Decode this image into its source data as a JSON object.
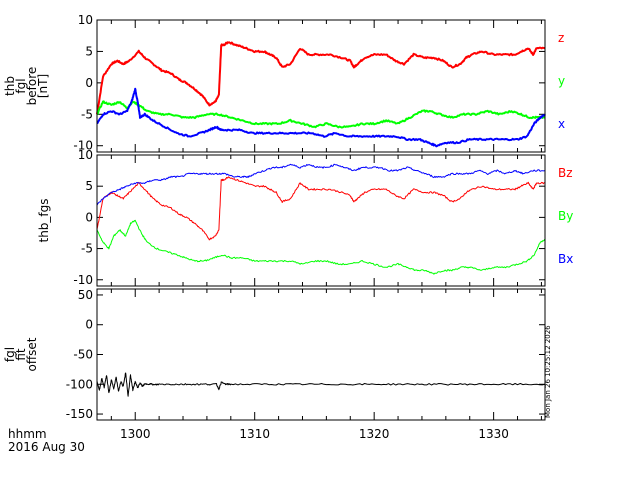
{
  "chart_data": [
    {
      "type": "line",
      "ylabel": [
        "thb",
        "fgl",
        "before",
        "[nT]"
      ],
      "xlim": [
        1296.8,
        1334.3
      ],
      "ylim": [
        -11,
        10
      ],
      "yticks": [
        10,
        5,
        0,
        -5,
        -10
      ],
      "legend_placement": "right",
      "series": [
        {
          "name": "z",
          "color": "#ff0000",
          "x": [
            1296.8,
            1297.3,
            1298.0,
            1298.5,
            1299.0,
            1299.5,
            1300.3,
            1300.8,
            1301.5,
            1302.2,
            1303.0,
            1303.7,
            1304.3,
            1305.0,
            1305.6,
            1306.2,
            1306.7,
            1307.0,
            1307.2,
            1307.4,
            1307.8,
            1308.5,
            1309.3,
            1310.0,
            1310.8,
            1311.3,
            1311.8,
            1312.3,
            1313.0,
            1313.8,
            1314.5,
            1315.3,
            1316.3,
            1317.3,
            1318.0,
            1318.3,
            1318.6,
            1319.2,
            1320.0,
            1321.0,
            1321.8,
            1322.5,
            1323.3,
            1324.2,
            1325.0,
            1325.8,
            1326.5,
            1327.2,
            1327.7,
            1328.2,
            1329.0,
            1330.0,
            1331.0,
            1331.8,
            1332.3,
            1332.9,
            1333.3,
            1333.6,
            1334.3
          ],
          "values": [
            -5,
            1,
            3,
            3.5,
            3,
            3.5,
            5,
            4,
            3,
            2,
            1.5,
            0.5,
            0,
            -1,
            -2,
            -3.5,
            -3,
            -2,
            6,
            6,
            6.5,
            6,
            5.5,
            5,
            5,
            4.5,
            4,
            2.5,
            3,
            5.5,
            4.5,
            4.5,
            4.5,
            4,
            3.5,
            2.5,
            3,
            4,
            4.5,
            4.5,
            3.5,
            3,
            4.5,
            4,
            4,
            3.5,
            2.5,
            3,
            4,
            4.5,
            5,
            4.5,
            4.5,
            4.5,
            5,
            5.5,
            4.5,
            5.5,
            5.5
          ]
        },
        {
          "name": "y",
          "color": "#00ff00",
          "x": [
            1296.8,
            1297.3,
            1298.0,
            1298.7,
            1299.3,
            1299.8,
            1300.3,
            1301.0,
            1302.0,
            1303.0,
            1304.0,
            1305.0,
            1306.0,
            1307.0,
            1308.0,
            1309.0,
            1310.0,
            1311.0,
            1312.0,
            1313.0,
            1314.0,
            1315.0,
            1316.0,
            1317.0,
            1318.0,
            1319.0,
            1320.0,
            1321.0,
            1322.0,
            1323.0,
            1324.0,
            1324.7,
            1325.5,
            1326.5,
            1327.5,
            1328.5,
            1329.5,
            1330.5,
            1331.5,
            1332.3,
            1333.0,
            1333.6,
            1334.3
          ],
          "values": [
            -5,
            -3,
            -3.5,
            -3,
            -4,
            -3,
            -3.5,
            -4.5,
            -5,
            -5,
            -5.5,
            -5.5,
            -5,
            -5,
            -5.5,
            -6,
            -6.5,
            -6.5,
            -6.5,
            -6,
            -6.5,
            -7,
            -6.5,
            -7,
            -7,
            -6.5,
            -6.5,
            -6,
            -6.5,
            -5.5,
            -4.5,
            -4.5,
            -5,
            -5.5,
            -5,
            -5,
            -4.5,
            -5,
            -4.5,
            -5,
            -5.5,
            -5.5,
            -5.5
          ]
        },
        {
          "name": "x",
          "color": "#0000ff",
          "x": [
            1296.8,
            1297.3,
            1298.0,
            1298.7,
            1299.3,
            1299.7,
            1300.0,
            1300.2,
            1300.4,
            1300.8,
            1301.5,
            1302.5,
            1303.5,
            1304.5,
            1305.5,
            1306.2,
            1306.8,
            1307.2,
            1307.8,
            1308.8,
            1309.8,
            1310.8,
            1311.8,
            1312.8,
            1313.8,
            1314.8,
            1315.8,
            1316.8,
            1317.8,
            1318.8,
            1319.8,
            1320.8,
            1321.8,
            1322.8,
            1323.8,
            1324.5,
            1325.2,
            1326.0,
            1327.0,
            1328.0,
            1329.0,
            1330.0,
            1331.0,
            1332.0,
            1332.8,
            1333.4,
            1333.9,
            1334.3
          ],
          "values": [
            -6.5,
            -5,
            -4.5,
            -5,
            -4.5,
            -3,
            -1,
            -3,
            -5.5,
            -5,
            -6,
            -7,
            -8,
            -8.5,
            -8,
            -7.5,
            -7,
            -7.5,
            -7.5,
            -7.5,
            -8,
            -8,
            -8,
            -8,
            -8,
            -8,
            -8.5,
            -8,
            -8.5,
            -8.5,
            -8.5,
            -8.5,
            -8.5,
            -9,
            -9,
            -9.5,
            -10,
            -9.5,
            -9.5,
            -9,
            -9,
            -9,
            -9,
            -9,
            -8.5,
            -6.5,
            -5.5,
            -5
          ]
        }
      ]
    },
    {
      "type": "line",
      "ylabel": [
        "thb_fgs"
      ],
      "xlim": [
        1296.8,
        1334.3
      ],
      "ylim": [
        -11,
        10
      ],
      "yticks": [
        10,
        5,
        0,
        -5,
        -10
      ],
      "legend_placement": "right",
      "series": [
        {
          "name": "Bz",
          "color": "#ff0000",
          "x": [
            1296.8,
            1297.3,
            1298.0,
            1298.5,
            1299.0,
            1299.5,
            1300.3,
            1300.8,
            1301.5,
            1302.2,
            1303.0,
            1303.7,
            1304.3,
            1305.0,
            1305.6,
            1306.2,
            1306.7,
            1307.0,
            1307.2,
            1307.4,
            1307.8,
            1308.5,
            1309.3,
            1310.0,
            1310.8,
            1311.3,
            1311.8,
            1312.3,
            1313.0,
            1313.8,
            1314.5,
            1315.3,
            1316.3,
            1317.3,
            1318.0,
            1318.3,
            1318.6,
            1319.2,
            1320.0,
            1321.0,
            1321.8,
            1322.5,
            1323.3,
            1324.2,
            1325.0,
            1325.8,
            1326.5,
            1327.2,
            1327.7,
            1328.2,
            1329.0,
            1330.0,
            1331.0,
            1331.8,
            1332.3,
            1332.9,
            1333.3,
            1333.6,
            1334.3
          ],
          "values": [
            -2,
            3,
            4,
            3.5,
            3,
            4,
            5.5,
            4.5,
            3,
            2,
            1.5,
            0.5,
            0,
            -1,
            -2,
            -3.5,
            -3,
            -2,
            6,
            6,
            6.5,
            6,
            5.5,
            5,
            5,
            4.5,
            4,
            2.5,
            3,
            5.5,
            4.5,
            4.5,
            4.5,
            4,
            3.5,
            2.5,
            3,
            4,
            4.5,
            4.5,
            3.5,
            3,
            4.5,
            4,
            4,
            3.5,
            2.5,
            3,
            4,
            4.5,
            5,
            4.5,
            4.5,
            4.5,
            5,
            5.5,
            4.5,
            5.5,
            5.5
          ]
        },
        {
          "name": "By",
          "color": "#00ff00",
          "x": [
            1296.8,
            1297.3,
            1297.8,
            1298.2,
            1298.7,
            1299.2,
            1299.6,
            1300.0,
            1300.5,
            1301.0,
            1301.8,
            1302.6,
            1303.5,
            1304.2,
            1305.0,
            1305.8,
            1306.6,
            1307.3,
            1308.0,
            1309.0,
            1310.0,
            1311.0,
            1312.0,
            1313.0,
            1314.0,
            1315.0,
            1316.0,
            1317.0,
            1318.0,
            1319.0,
            1320.0,
            1321.0,
            1322.0,
            1322.8,
            1323.5,
            1324.2,
            1325.0,
            1325.8,
            1326.5,
            1327.3,
            1328.0,
            1329.0,
            1330.0,
            1331.0,
            1332.0,
            1332.8,
            1333.4,
            1333.9,
            1334.3
          ],
          "values": [
            -2,
            -4,
            -5,
            -3,
            -2,
            -3,
            -1,
            -0.5,
            -2.5,
            -4,
            -5,
            -5.5,
            -6,
            -6.5,
            -7,
            -7,
            -6.5,
            -6,
            -6.5,
            -6.5,
            -7,
            -7,
            -7,
            -7,
            -7.5,
            -7,
            -7,
            -7.5,
            -7.5,
            -7,
            -7.5,
            -8,
            -7.5,
            -8,
            -8.5,
            -8.5,
            -9,
            -8.5,
            -8.5,
            -8,
            -8,
            -8.5,
            -8,
            -8,
            -7.5,
            -7,
            -6,
            -4,
            -3.5
          ]
        },
        {
          "name": "Bx",
          "color": "#0000ff",
          "x": [
            1296.8,
            1297.3,
            1298.0,
            1298.7,
            1299.3,
            1300.0,
            1300.8,
            1301.5,
            1302.3,
            1303.0,
            1303.8,
            1304.5,
            1305.3,
            1306.0,
            1306.8,
            1307.5,
            1308.3,
            1309.0,
            1309.5,
            1310.0,
            1310.8,
            1311.5,
            1312.3,
            1313.0,
            1313.8,
            1314.5,
            1315.3,
            1316.0,
            1316.8,
            1317.5,
            1318.3,
            1319.0,
            1319.8,
            1320.5,
            1321.3,
            1322.0,
            1322.8,
            1323.5,
            1324.3,
            1325.0,
            1325.8,
            1326.5,
            1327.3,
            1328.0,
            1328.8,
            1329.5,
            1330.3,
            1331.0,
            1331.8,
            1332.5,
            1333.3,
            1334.3
          ],
          "values": [
            2,
            3,
            4,
            4.5,
            5,
            5.5,
            5.5,
            6,
            6,
            6.5,
            6.5,
            7,
            7,
            7,
            7,
            7,
            6.5,
            6.5,
            6.5,
            7,
            7.5,
            8,
            8,
            8.5,
            8,
            8.5,
            8,
            8,
            8.5,
            8,
            7.5,
            8,
            8,
            8,
            7.5,
            7.5,
            8,
            7.5,
            7,
            6.5,
            6.5,
            7,
            7,
            7,
            7.5,
            7,
            7.5,
            7,
            7.5,
            7,
            7.5,
            7.5
          ]
        }
      ]
    },
    {
      "type": "line",
      "ylabel": [
        "fgl",
        "fit",
        "offset"
      ],
      "xlim": [
        1296.8,
        1334.3
      ],
      "ylim": [
        -160,
        60
      ],
      "yticks": [
        50,
        0,
        -50,
        -100,
        -150
      ],
      "xticks": [
        1300,
        1310,
        1320,
        1330
      ],
      "series": [
        {
          "name": "offset",
          "color": "#000000",
          "x": [
            1296.8,
            1297.0,
            1297.2,
            1297.4,
            1297.6,
            1297.8,
            1298.0,
            1298.2,
            1298.4,
            1298.6,
            1298.8,
            1299.0,
            1299.2,
            1299.4,
            1299.6,
            1299.8,
            1300.0,
            1300.2,
            1300.4,
            1300.6,
            1300.8,
            1301.2,
            1301.6,
            1302.0,
            1303.0,
            1304.0,
            1305.0,
            1306.0,
            1306.8,
            1307.0,
            1307.2,
            1307.6,
            1308.0,
            1310.0,
            1312.0,
            1314.0,
            1316.0,
            1318.0,
            1320.0,
            1322.0,
            1324.0,
            1326.0,
            1328.0,
            1330.0,
            1332.0,
            1334.3
          ],
          "values": [
            -95,
            -110,
            -90,
            -105,
            -85,
            -115,
            -92,
            -108,
            -88,
            -112,
            -95,
            -104,
            -80,
            -120,
            -85,
            -110,
            -95,
            -106,
            -98,
            -103,
            -100,
            -99,
            -101,
            -100,
            -100,
            -100,
            -100,
            -100,
            -100,
            -108,
            -97,
            -100,
            -100,
            -100,
            -100,
            -100,
            -100,
            -100,
            -100,
            -100,
            -100,
            -100,
            -100,
            -100,
            -100,
            -100
          ]
        }
      ]
    }
  ],
  "footer": {
    "axis_unit": "hhmm",
    "date": "2016 Aug 30",
    "side_stamp": "Mon Jan 26 10:25:12 2026"
  }
}
